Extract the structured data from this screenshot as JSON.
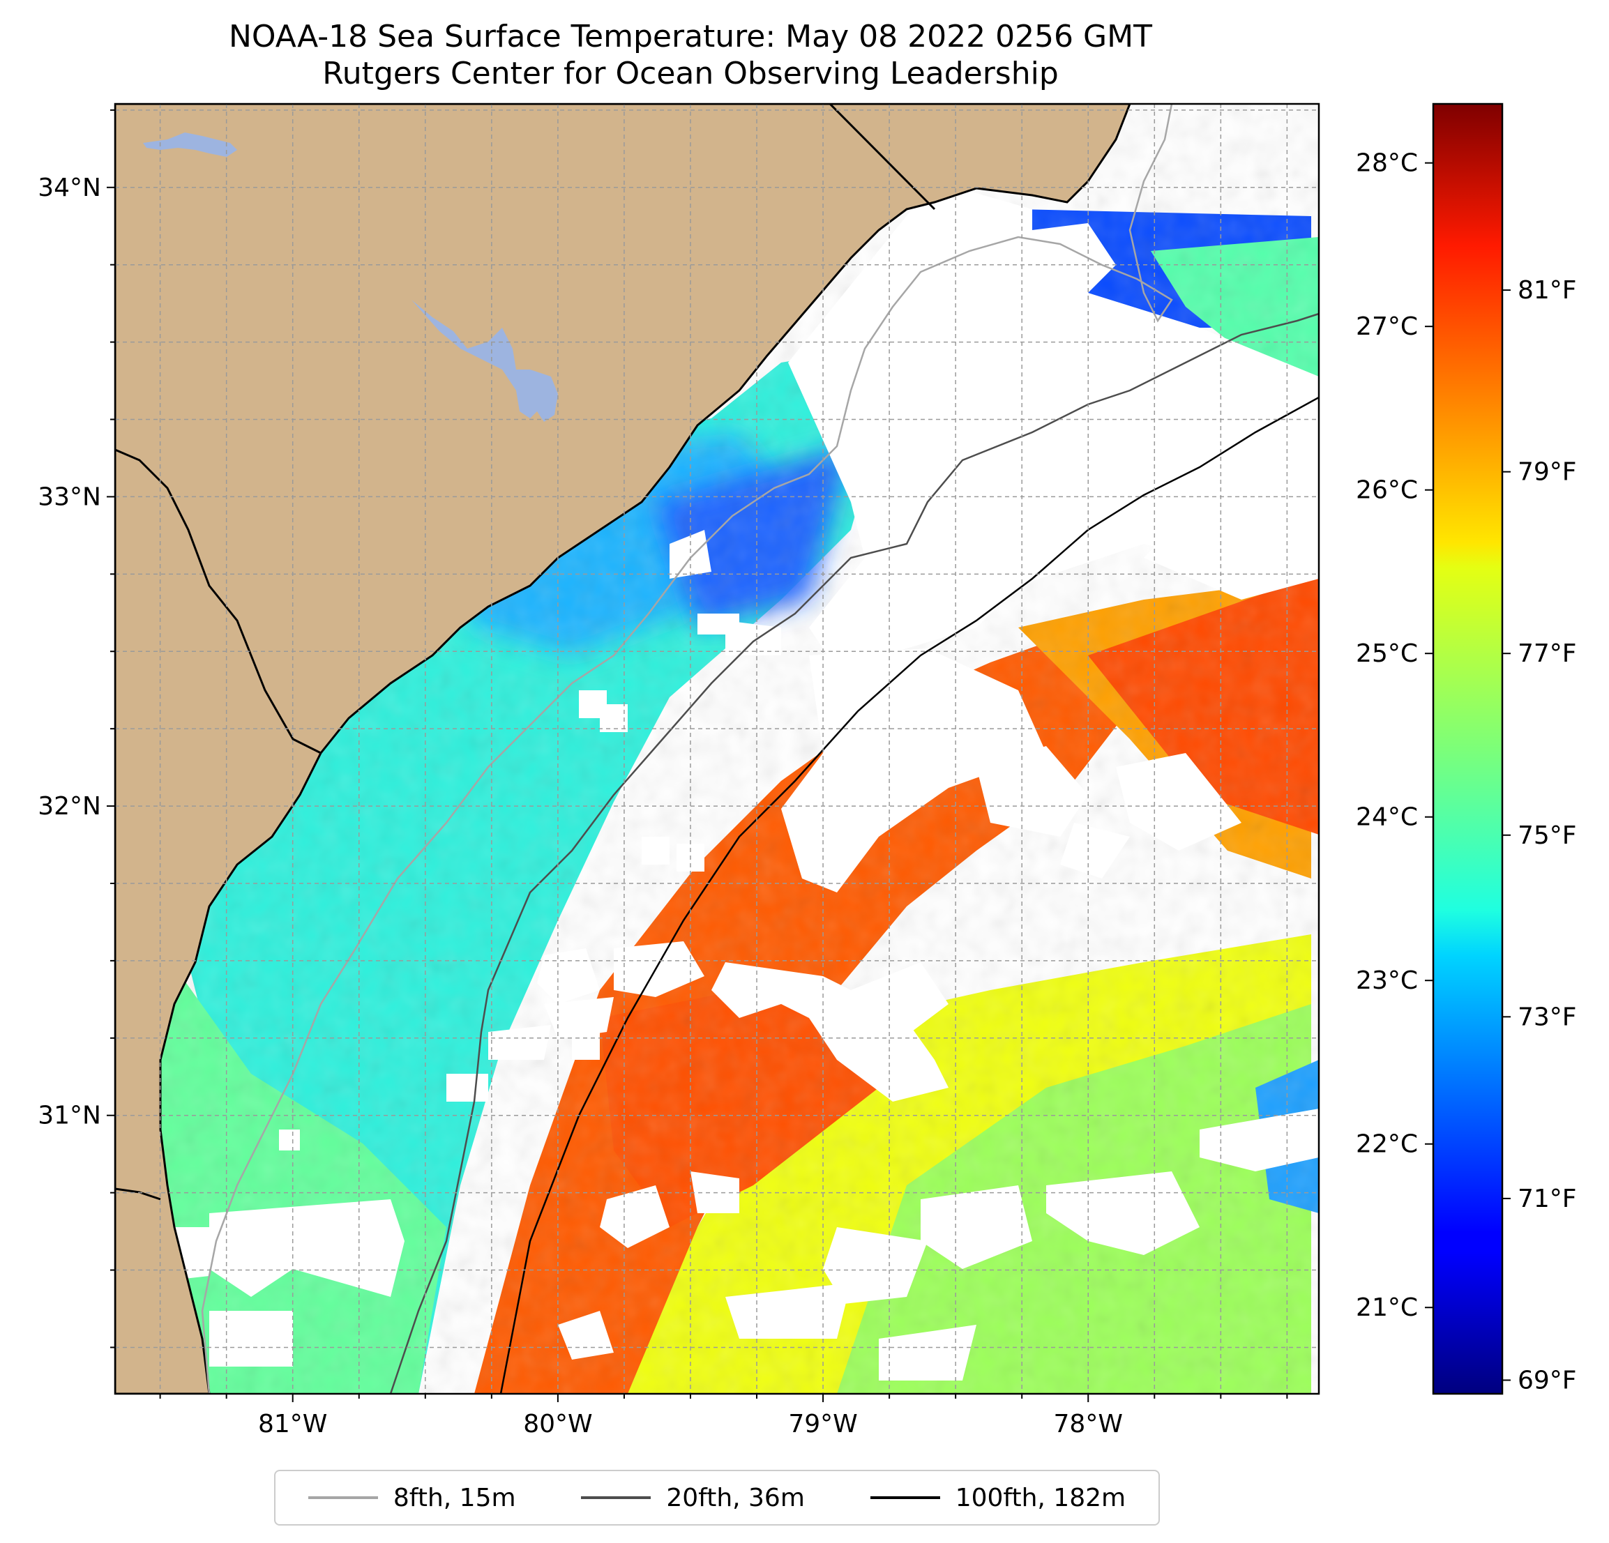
{
  "title": {
    "line1": "NOAA-18 Sea Surface Temperature: May 08 2022 0256 GMT",
    "line2": "Rutgers Center for Ocean Observing Leadership"
  },
  "map": {
    "lon_range": [
      -81.67,
      -77.13
    ],
    "lat_range": [
      30.1,
      34.27
    ],
    "lat_ticks": [
      {
        "value": 34,
        "label": "34°N"
      },
      {
        "value": 33,
        "label": "33°N"
      },
      {
        "value": 32,
        "label": "32°N"
      },
      {
        "value": 31,
        "label": "31°N"
      }
    ],
    "lon_ticks": [
      {
        "value": -81,
        "label": "81°W"
      },
      {
        "value": -80,
        "label": "80°W"
      },
      {
        "value": -79,
        "label": "79°W"
      },
      {
        "value": -78,
        "label": "78°W"
      }
    ],
    "gridlines": true,
    "land_color": "#d2b48c",
    "lake_color": "#9db4e0",
    "ocean_nodata_color": "#ffffff"
  },
  "colorbar": {
    "colormap": "jet",
    "celsius_ticks": [
      {
        "value": 28,
        "label": "28°C"
      },
      {
        "value": 27,
        "label": "27°C"
      },
      {
        "value": 26,
        "label": "26°C"
      },
      {
        "value": 25,
        "label": "25°C"
      },
      {
        "value": 24,
        "label": "24°C"
      },
      {
        "value": 23,
        "label": "23°C"
      },
      {
        "value": 22,
        "label": "22°C"
      },
      {
        "value": 21,
        "label": "21°C"
      }
    ],
    "fahrenheit_ticks": [
      {
        "value": 81,
        "label": "81°F"
      },
      {
        "value": 79,
        "label": "79°F"
      },
      {
        "value": 77,
        "label": "77°F"
      },
      {
        "value": 75,
        "label": "75°F"
      },
      {
        "value": 73,
        "label": "73°F"
      },
      {
        "value": 71,
        "label": "71°F"
      },
      {
        "value": 69,
        "label": "69°F"
      }
    ]
  },
  "legend": [
    {
      "label": "8fth, 15m",
      "color": "#a6a6a6"
    },
    {
      "label": "20fth, 36m",
      "color": "#4d4d4d"
    },
    {
      "label": "100fth, 182m",
      "color": "#000000"
    }
  ]
}
